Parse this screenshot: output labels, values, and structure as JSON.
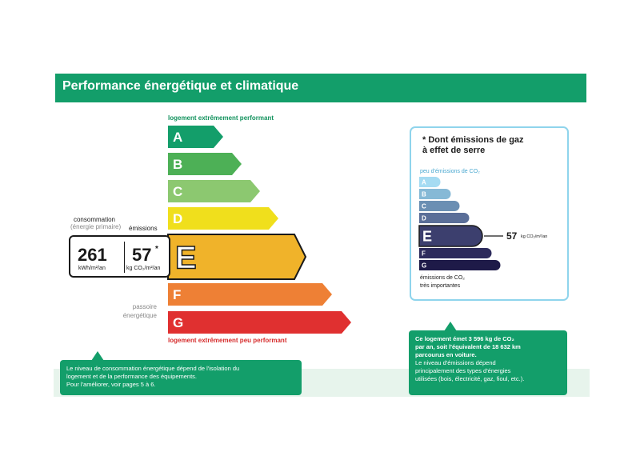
{
  "header": {
    "title": "Performance énergétique et climatique"
  },
  "dpe": {
    "top_caption": "logement extrêmement performant",
    "bottom_caption": "logement extrêmement peu performant",
    "active_letter": "E",
    "classes": [
      {
        "letter": "A",
        "color": "#139e6a"
      },
      {
        "letter": "B",
        "color": "#4db056"
      },
      {
        "letter": "C",
        "color": "#8cc870"
      },
      {
        "letter": "D",
        "color": "#f0df1c"
      },
      {
        "letter": "E",
        "color": "#f0b32a"
      },
      {
        "letter": "F",
        "color": "#ee8035"
      },
      {
        "letter": "G",
        "color": "#e03030"
      }
    ]
  },
  "consumption": {
    "label_line1": "consommation",
    "label_line2": "(énergie primaire)",
    "emissions_label": "émissions",
    "value": "261",
    "unit": "kWh/m²/an",
    "emissions_value": "57",
    "emissions_mark": "*",
    "emissions_unit": "kg CO₂/m²/an"
  },
  "passoire": {
    "line1": "passoire",
    "line2": "énergétique"
  },
  "ges": {
    "title_line1": "* Dont émissions de gaz",
    "title_line2": "à effet de serre",
    "top_caption": "peu d'émissions de CO₂",
    "bottom_caption_line1": "émissions de CO₂",
    "bottom_caption_line2": "très importantes",
    "active_letter": "E",
    "value": "57",
    "unit": "kg CO₂/m²/an",
    "classes": [
      {
        "letter": "A",
        "color": "#a5dbf2"
      },
      {
        "letter": "B",
        "color": "#86b9d6"
      },
      {
        "letter": "C",
        "color": "#6b8fb3"
      },
      {
        "letter": "D",
        "color": "#5a6e98"
      },
      {
        "letter": "E",
        "color": "#3c3f6e"
      },
      {
        "letter": "F",
        "color": "#2d2b5c"
      },
      {
        "letter": "G",
        "color": "#1e1a48"
      }
    ]
  },
  "notes": {
    "left_line1": "Le niveau de consommation énergétique dépend de l'isolation du",
    "left_line2": "logement et de la performance des équipements.",
    "left_line3": "Pour l'améliorer, voir pages 5 à 6.",
    "right_line1": "Ce logement émet 3 596 kg de CO₂",
    "right_line2": "par an, soit l'équivalent de 18 632 km",
    "right_line3": "parcourus en voiture.",
    "right_line4": "Le niveau d'émissions dépend",
    "right_line5": "principalement des types d'énergies",
    "right_line6": "utilisées (bois, électricité, gaz, fioul, etc.)."
  },
  "chart_data": [
    {
      "type": "bar",
      "categories": [
        "A",
        "B",
        "C",
        "D",
        "E",
        "F",
        "G"
      ],
      "highlighted": "E",
      "consumption_value": 261,
      "consumption_unit": "kWh/m²/an",
      "emissions_value": 57,
      "emissions_unit": "kg CO₂/m²/an"
    },
    {
      "type": "bar",
      "categories": [
        "A",
        "B",
        "C",
        "D",
        "E",
        "F",
        "G"
      ],
      "highlighted": "E",
      "value": 57,
      "unit": "kg CO₂/m²/an"
    }
  ]
}
